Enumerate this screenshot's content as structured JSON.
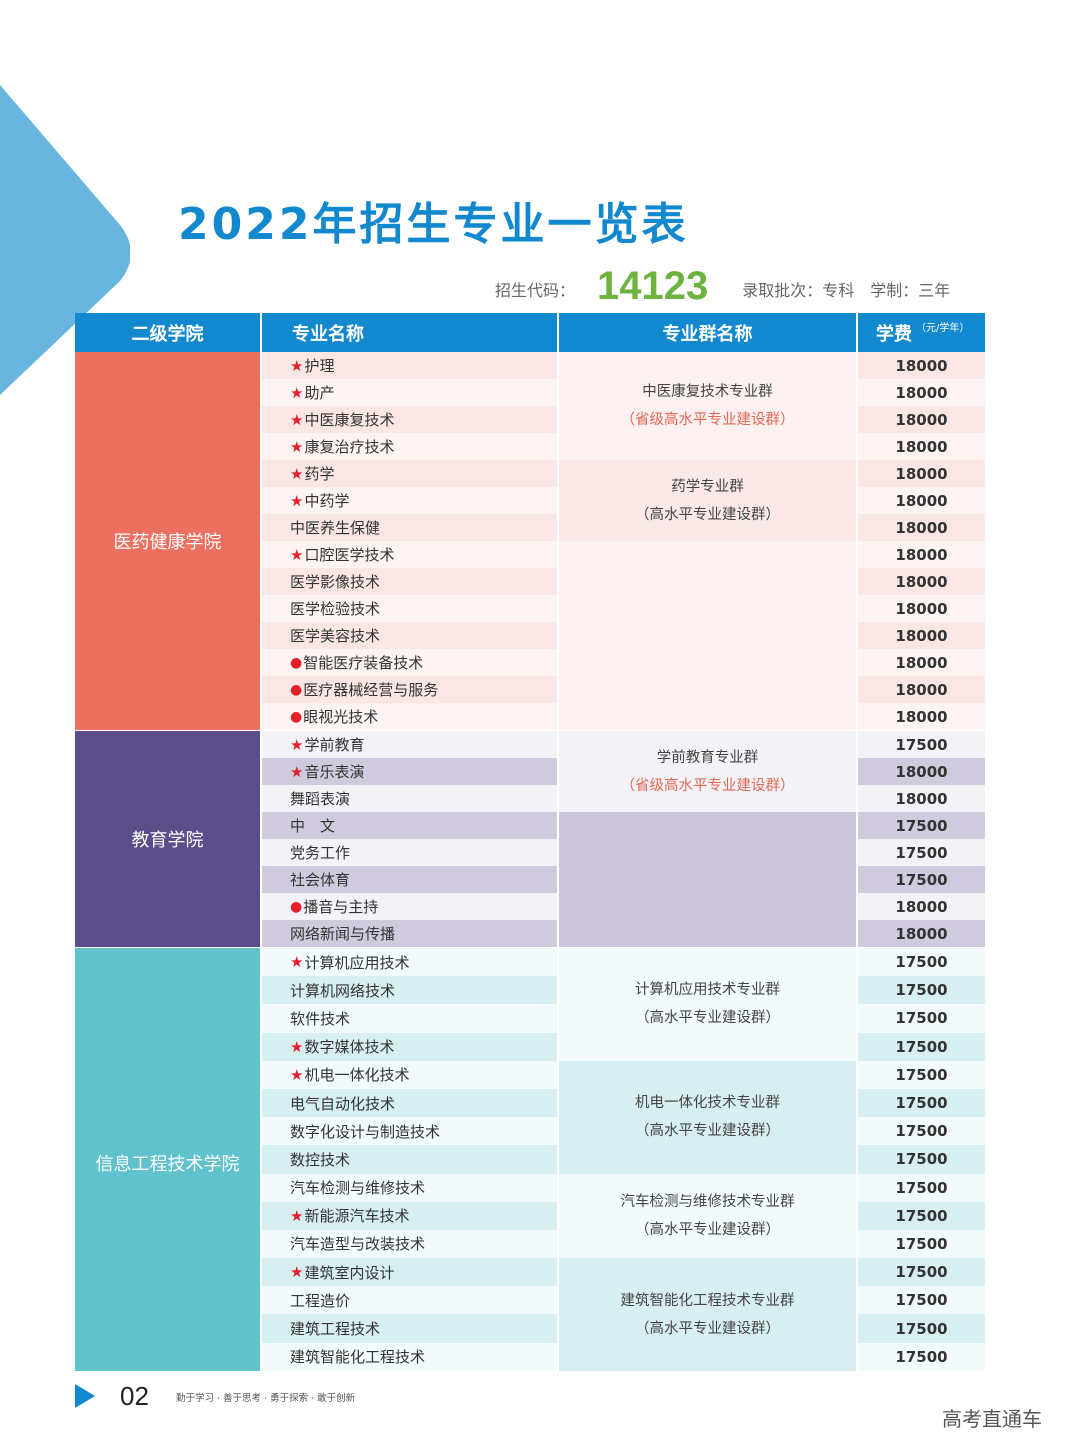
{
  "title": "2022年招生专业一览表",
  "meta": {
    "code_label": "招生代码：",
    "code": "14123",
    "batch": "录取批次：专科",
    "system": "学制：三年"
  },
  "table": {
    "headers": {
      "college": "二级学院",
      "major": "专业名称",
      "group": "专业群名称",
      "fee": "学费",
      "fee_unit": "（元/学年）"
    },
    "sections": [
      {
        "college": "医药健康学院",
        "color": "#ec6f5f",
        "majors": [
          {
            "mark": "★",
            "name": "护理",
            "fee": "18000"
          },
          {
            "mark": "★",
            "name": "助产",
            "fee": "18000"
          },
          {
            "mark": "★",
            "name": "中医康复技术",
            "fee": "18000"
          },
          {
            "mark": "★",
            "name": "康复治疗技术",
            "fee": "18000"
          },
          {
            "mark": "★",
            "name": "药学",
            "fee": "18000"
          },
          {
            "mark": "★",
            "name": "中药学",
            "fee": "18000"
          },
          {
            "mark": "",
            "name": "中医养生保健",
            "fee": "18000"
          },
          {
            "mark": "★",
            "name": "口腔医学技术",
            "fee": "18000"
          },
          {
            "mark": "",
            "name": "医学影像技术",
            "fee": "18000"
          },
          {
            "mark": "",
            "name": "医学检验技术",
            "fee": "18000"
          },
          {
            "mark": "",
            "name": "医学美容技术",
            "fee": "18000"
          },
          {
            "mark": "●",
            "name": "智能医疗装备技术",
            "fee": "18000"
          },
          {
            "mark": "●",
            "name": "医疗器械经营与服务",
            "fee": "18000"
          },
          {
            "mark": "●",
            "name": "眼视光技术",
            "fee": "18000"
          }
        ],
        "groups": [
          {
            "name": "中医康复技术专业群",
            "note": "（省级高水平专业建设群）",
            "rows": 4
          },
          {
            "name": "药学专业群",
            "note": "（高水平专业建设群）",
            "rows": 3
          },
          {
            "name": "",
            "note": "",
            "rows": 7
          }
        ]
      },
      {
        "college": "教育学院",
        "color": "#5b4d8a",
        "majors": [
          {
            "mark": "★",
            "name": "学前教育",
            "fee": "17500"
          },
          {
            "mark": "★",
            "name": "音乐表演",
            "fee": "18000"
          },
          {
            "mark": "",
            "name": "舞蹈表演",
            "fee": "18000"
          },
          {
            "mark": "",
            "name": "中　文",
            "fee": "17500"
          },
          {
            "mark": "",
            "name": "党务工作",
            "fee": "17500"
          },
          {
            "mark": "",
            "name": "社会体育",
            "fee": "17500"
          },
          {
            "mark": "●",
            "name": "播音与主持",
            "fee": "18000"
          },
          {
            "mark": "",
            "name": "网络新闻与传播",
            "fee": "18000"
          }
        ],
        "groups": [
          {
            "name": "学前教育专业群",
            "note": "（省级高水平专业建设群）",
            "rows": 3
          },
          {
            "name": "",
            "note": "",
            "rows": 5
          }
        ]
      },
      {
        "college": "信息工程技术学院",
        "color": "#5fc2cc",
        "majors": [
          {
            "mark": "★",
            "name": "计算机应用技术",
            "fee": "17500"
          },
          {
            "mark": "",
            "name": "计算机网络技术",
            "fee": "17500"
          },
          {
            "mark": "",
            "name": "软件技术",
            "fee": "17500"
          },
          {
            "mark": "★",
            "name": "数字媒体技术",
            "fee": "17500"
          },
          {
            "mark": "★",
            "name": "机电一体化技术",
            "fee": "17500"
          },
          {
            "mark": "",
            "name": "电气自动化技术",
            "fee": "17500"
          },
          {
            "mark": "",
            "name": "数字化设计与制造技术",
            "fee": "17500"
          },
          {
            "mark": "",
            "name": "数控技术",
            "fee": "17500"
          },
          {
            "mark": "",
            "name": "汽车检测与维修技术",
            "fee": "17500"
          },
          {
            "mark": "★",
            "name": "新能源汽车技术",
            "fee": "17500"
          },
          {
            "mark": "",
            "name": "汽车造型与改装技术",
            "fee": "17500"
          },
          {
            "mark": "★",
            "name": "建筑室内设计",
            "fee": "17500"
          },
          {
            "mark": "",
            "name": "工程造价",
            "fee": "17500"
          },
          {
            "mark": "",
            "name": "建筑工程技术",
            "fee": "17500"
          },
          {
            "mark": "",
            "name": "建筑智能化工程技术",
            "fee": "17500"
          }
        ],
        "groups": [
          {
            "name": "计算机应用技术专业群",
            "note": "（高水平专业建设群）",
            "rows": 4
          },
          {
            "name": "机电一体化技术专业群",
            "note": "（高水平专业建设群）",
            "rows": 4
          },
          {
            "name": "汽车检测与维修技术专业群",
            "note": "（高水平专业建设群）",
            "rows": 3
          },
          {
            "name": "建筑智能化工程技术专业群",
            "note": "（高水平专业建设群）",
            "rows": 4
          }
        ]
      }
    ]
  },
  "footer": {
    "page": "02",
    "slogan": "勤于学习 · 善于思考 · 勇于探索 · 敢于创新",
    "watermark": "高考直通车"
  },
  "colors": {
    "brand_blue": "#1289cf",
    "code_green": "#6db33f",
    "mark_red": "#e51e2b",
    "provincial_note": "#e06a55"
  }
}
